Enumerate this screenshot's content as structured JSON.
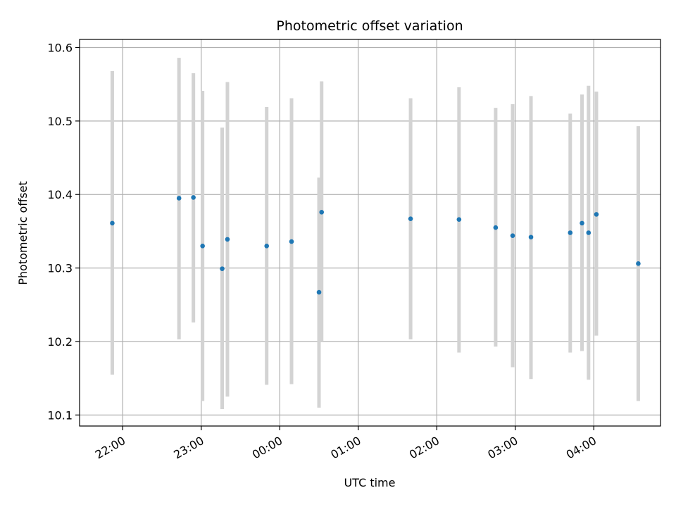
{
  "chart_data": {
    "type": "scatter",
    "title": "Photometric offset variation",
    "xlabel": "UTC time",
    "ylabel": "Photometric offset",
    "x_ticks": [
      "22:00",
      "23:00",
      "00:00",
      "01:00",
      "02:00",
      "03:00",
      "04:00"
    ],
    "x_tick_times": [
      "2023-01-01T22:00",
      "2023-01-01T23:00",
      "2023-01-02T00:00",
      "2023-01-02T01:00",
      "2023-01-02T02:00",
      "2023-01-02T03:00",
      "2023-01-02T04:00"
    ],
    "xlim": [
      "2023-01-01T21:27",
      "2023-01-02T04:51"
    ],
    "y_ticks": [
      "10.1",
      "10.2",
      "10.3",
      "10.4",
      "10.5",
      "10.6"
    ],
    "ylim": [
      10.085,
      10.611
    ],
    "grid": true,
    "series": [
      {
        "marker_color": "#1f77b4",
        "error_color": "#d3d3d3",
        "points": [
          {
            "x": "2023-01-01T21:52",
            "y": 10.361,
            "ylow": 10.155,
            "yhigh": 10.568
          },
          {
            "x": "2023-01-01T22:43",
            "y": 10.395,
            "ylow": 10.203,
            "yhigh": 10.586
          },
          {
            "x": "2023-01-01T22:54",
            "y": 10.396,
            "ylow": 10.226,
            "yhigh": 10.565
          },
          {
            "x": "2023-01-01T23:01",
            "y": 10.33,
            "ylow": 10.119,
            "yhigh": 10.541
          },
          {
            "x": "2023-01-01T23:16",
            "y": 10.299,
            "ylow": 10.108,
            "yhigh": 10.491
          },
          {
            "x": "2023-01-01T23:20",
            "y": 10.339,
            "ylow": 10.125,
            "yhigh": 10.553
          },
          {
            "x": "2023-01-01T23:50",
            "y": 10.33,
            "ylow": 10.141,
            "yhigh": 10.519
          },
          {
            "x": "2023-01-02T00:09",
            "y": 10.336,
            "ylow": 10.142,
            "yhigh": 10.531
          },
          {
            "x": "2023-01-02T00:30",
            "y": 10.267,
            "ylow": 10.11,
            "yhigh": 10.423
          },
          {
            "x": "2023-01-02T00:32",
            "y": 10.376,
            "ylow": 10.2,
            "yhigh": 10.554
          },
          {
            "x": "2023-01-02T01:40",
            "y": 10.367,
            "ylow": 10.203,
            "yhigh": 10.531
          },
          {
            "x": "2023-01-02T02:17",
            "y": 10.366,
            "ylow": 10.185,
            "yhigh": 10.546
          },
          {
            "x": "2023-01-02T02:45",
            "y": 10.355,
            "ylow": 10.193,
            "yhigh": 10.518
          },
          {
            "x": "2023-01-02T02:58",
            "y": 10.344,
            "ylow": 10.165,
            "yhigh": 10.523
          },
          {
            "x": "2023-01-02T03:12",
            "y": 10.342,
            "ylow": 10.149,
            "yhigh": 10.534
          },
          {
            "x": "2023-01-02T03:42",
            "y": 10.348,
            "ylow": 10.185,
            "yhigh": 10.51
          },
          {
            "x": "2023-01-02T03:51",
            "y": 10.361,
            "ylow": 10.187,
            "yhigh": 10.536
          },
          {
            "x": "2023-01-02T03:56",
            "y": 10.348,
            "ylow": 10.148,
            "yhigh": 10.548
          },
          {
            "x": "2023-01-02T04:02",
            "y": 10.373,
            "ylow": 10.208,
            "yhigh": 10.54
          },
          {
            "x": "2023-01-02T04:34",
            "y": 10.306,
            "ylow": 10.119,
            "yhigh": 10.493
          }
        ]
      }
    ]
  }
}
